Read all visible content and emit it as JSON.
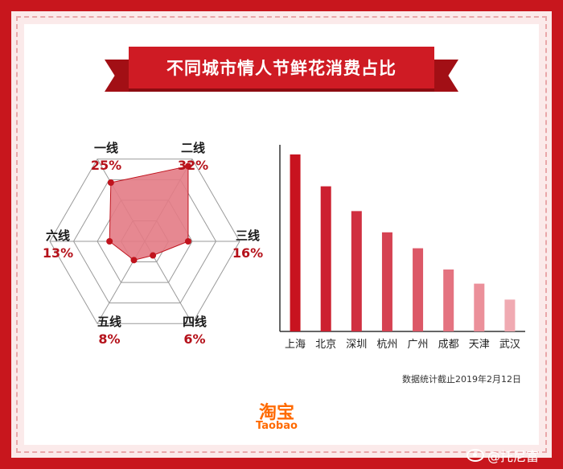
{
  "colors": {
    "brand_red": "#cf1b24",
    "radar_fill": "#e37b85",
    "radar_point": "#c0131d",
    "label_dark": "#1a1a1a",
    "percent_red": "#b5121b",
    "logo_orange": "#ff6a00"
  },
  "chart_data": [
    {
      "type": "radar",
      "title": "不同城市情人节鲜花消费占比",
      "categories": [
        "一线",
        "二线",
        "三线",
        "四线",
        "五线",
        "六线"
      ],
      "values": [
        25,
        32,
        16,
        6,
        8,
        13
      ],
      "labels": [
        "25%",
        "32%",
        "16%",
        "6%",
        "8%",
        "13%"
      ],
      "rmax": 35,
      "rings": 4
    },
    {
      "type": "bar",
      "categories": [
        "上海",
        "北京",
        "深圳",
        "杭州",
        "广州",
        "成都",
        "天津",
        "武汉"
      ],
      "values": [
        100,
        82,
        68,
        56,
        47,
        35,
        27,
        18
      ],
      "value_scale": "relative",
      "ylim": [
        0,
        110
      ],
      "bar_colors": [
        "#c8131f",
        "#cc2030",
        "#d02f40",
        "#d54252",
        "#dc5867",
        "#e47380",
        "#eb909a",
        "#f0aab2"
      ],
      "show_values": false
    }
  ],
  "title": "不同城市情人节鲜花消费占比",
  "footnote": "数据统计截止2019年2月12日",
  "logo": {
    "cn": "淘宝",
    "en": "Taobao"
  },
  "watermark": "@托尼富"
}
